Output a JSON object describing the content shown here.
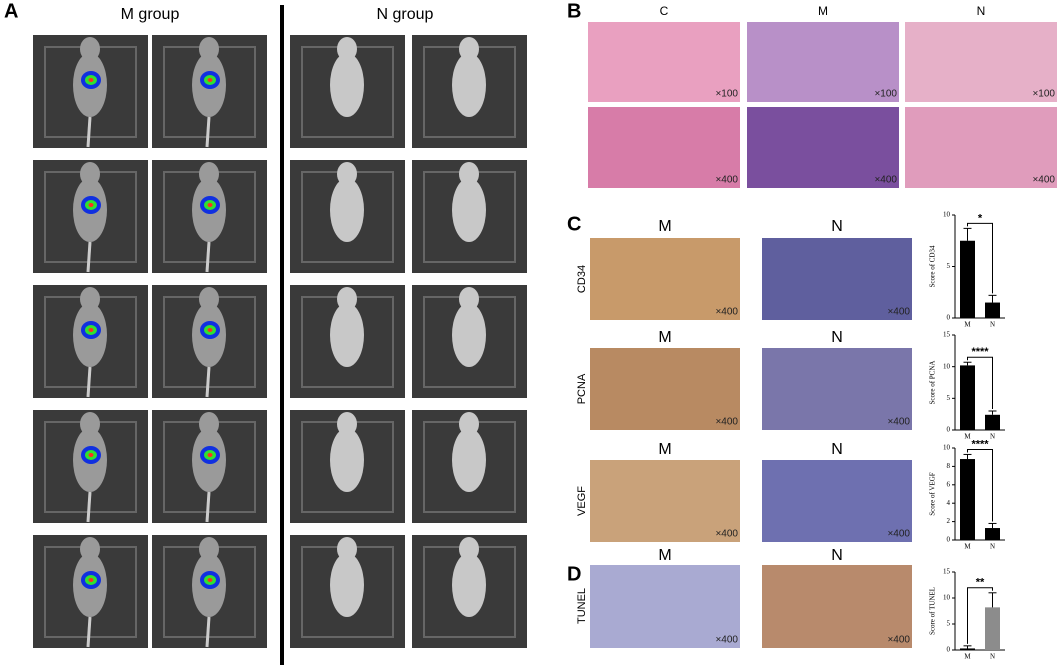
{
  "panel_a": {
    "label": "A",
    "groups": [
      "M group",
      "N group"
    ]
  },
  "panel_b": {
    "label": "B",
    "columns": [
      "C",
      "M",
      "N"
    ],
    "magnifications": [
      [
        "×100",
        "×100",
        "×100"
      ],
      [
        "×400",
        "×400",
        "×400"
      ]
    ]
  },
  "panel_c": {
    "label": "C",
    "columns": [
      "M",
      "N"
    ],
    "rows": [
      "CD34",
      "PCNA",
      "VEGF"
    ],
    "magnifications": [
      [
        "×400",
        "×400"
      ],
      [
        "×400",
        "×400"
      ],
      [
        "×400",
        "×400"
      ]
    ]
  },
  "panel_d": {
    "label": "D",
    "columns": [
      "M",
      "N"
    ],
    "rows": [
      "TUNEL"
    ],
    "magnifications": [
      [
        "×400",
        "×400"
      ]
    ]
  },
  "chart_data": [
    {
      "type": "bar",
      "y_label": "Score of CD34",
      "categories": [
        "M",
        "N"
      ],
      "values": [
        7.5,
        1.5
      ],
      "errors": [
        1.2,
        0.7
      ],
      "colors": [
        "#000000",
        "#000000"
      ],
      "ylim": [
        0,
        10
      ],
      "yticks": [
        0,
        5,
        10
      ],
      "significance": "*"
    },
    {
      "type": "bar",
      "y_label": "Score of PCNA",
      "categories": [
        "M",
        "N"
      ],
      "values": [
        10.2,
        2.4
      ],
      "errors": [
        0.5,
        0.6
      ],
      "colors": [
        "#000000",
        "#000000"
      ],
      "ylim": [
        0,
        15
      ],
      "yticks": [
        0,
        5,
        10,
        15
      ],
      "significance": "****"
    },
    {
      "type": "bar",
      "y_label": "Score of VEGF",
      "categories": [
        "M",
        "N"
      ],
      "values": [
        8.8,
        1.3
      ],
      "errors": [
        0.5,
        0.5
      ],
      "colors": [
        "#000000",
        "#000000"
      ],
      "ylim": [
        0,
        10
      ],
      "yticks": [
        0,
        2,
        4,
        6,
        8,
        10
      ],
      "significance": "****"
    },
    {
      "type": "bar",
      "y_label": "Score of TUNEL",
      "categories": [
        "M",
        "N"
      ],
      "values": [
        0.3,
        8.2
      ],
      "errors": [
        0.5,
        2.8
      ],
      "colors": [
        "#000000",
        "#8c8c8c"
      ],
      "ylim": [
        0,
        15
      ],
      "yticks": [
        0,
        5,
        10,
        15
      ],
      "significance": "**"
    }
  ]
}
